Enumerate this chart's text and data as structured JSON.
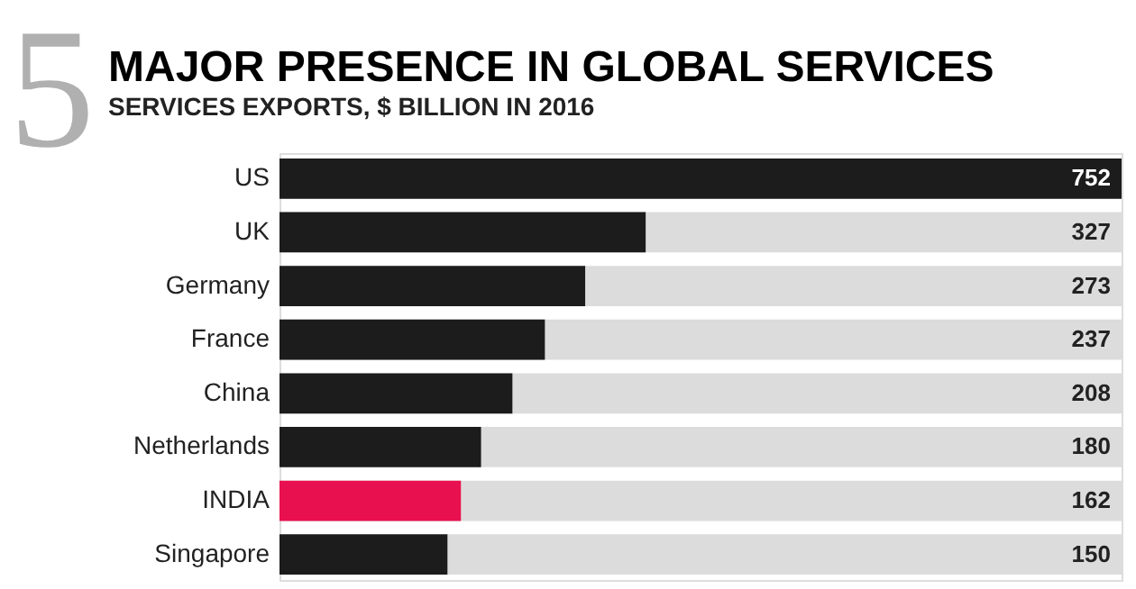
{
  "chart_data": {
    "type": "bar",
    "orientation": "horizontal",
    "title": "MAJOR PRESENCE IN GLOBAL SERVICES",
    "subtitle": "SERVICES EXPORTS, $ BILLION IN 2016",
    "categories": [
      "US",
      "UK",
      "Germany",
      "France",
      "China",
      "Netherlands",
      "INDIA",
      "Singapore"
    ],
    "values": [
      752,
      327,
      273,
      237,
      208,
      180,
      162,
      150
    ],
    "colors": [
      "#1c1c1c",
      "#1c1c1c",
      "#1c1c1c",
      "#1c1c1c",
      "#1c1c1c",
      "#1c1c1c",
      "#e8104e",
      "#1c1c1c"
    ],
    "data_labels": true,
    "annotations": [
      "5"
    ]
  }
}
